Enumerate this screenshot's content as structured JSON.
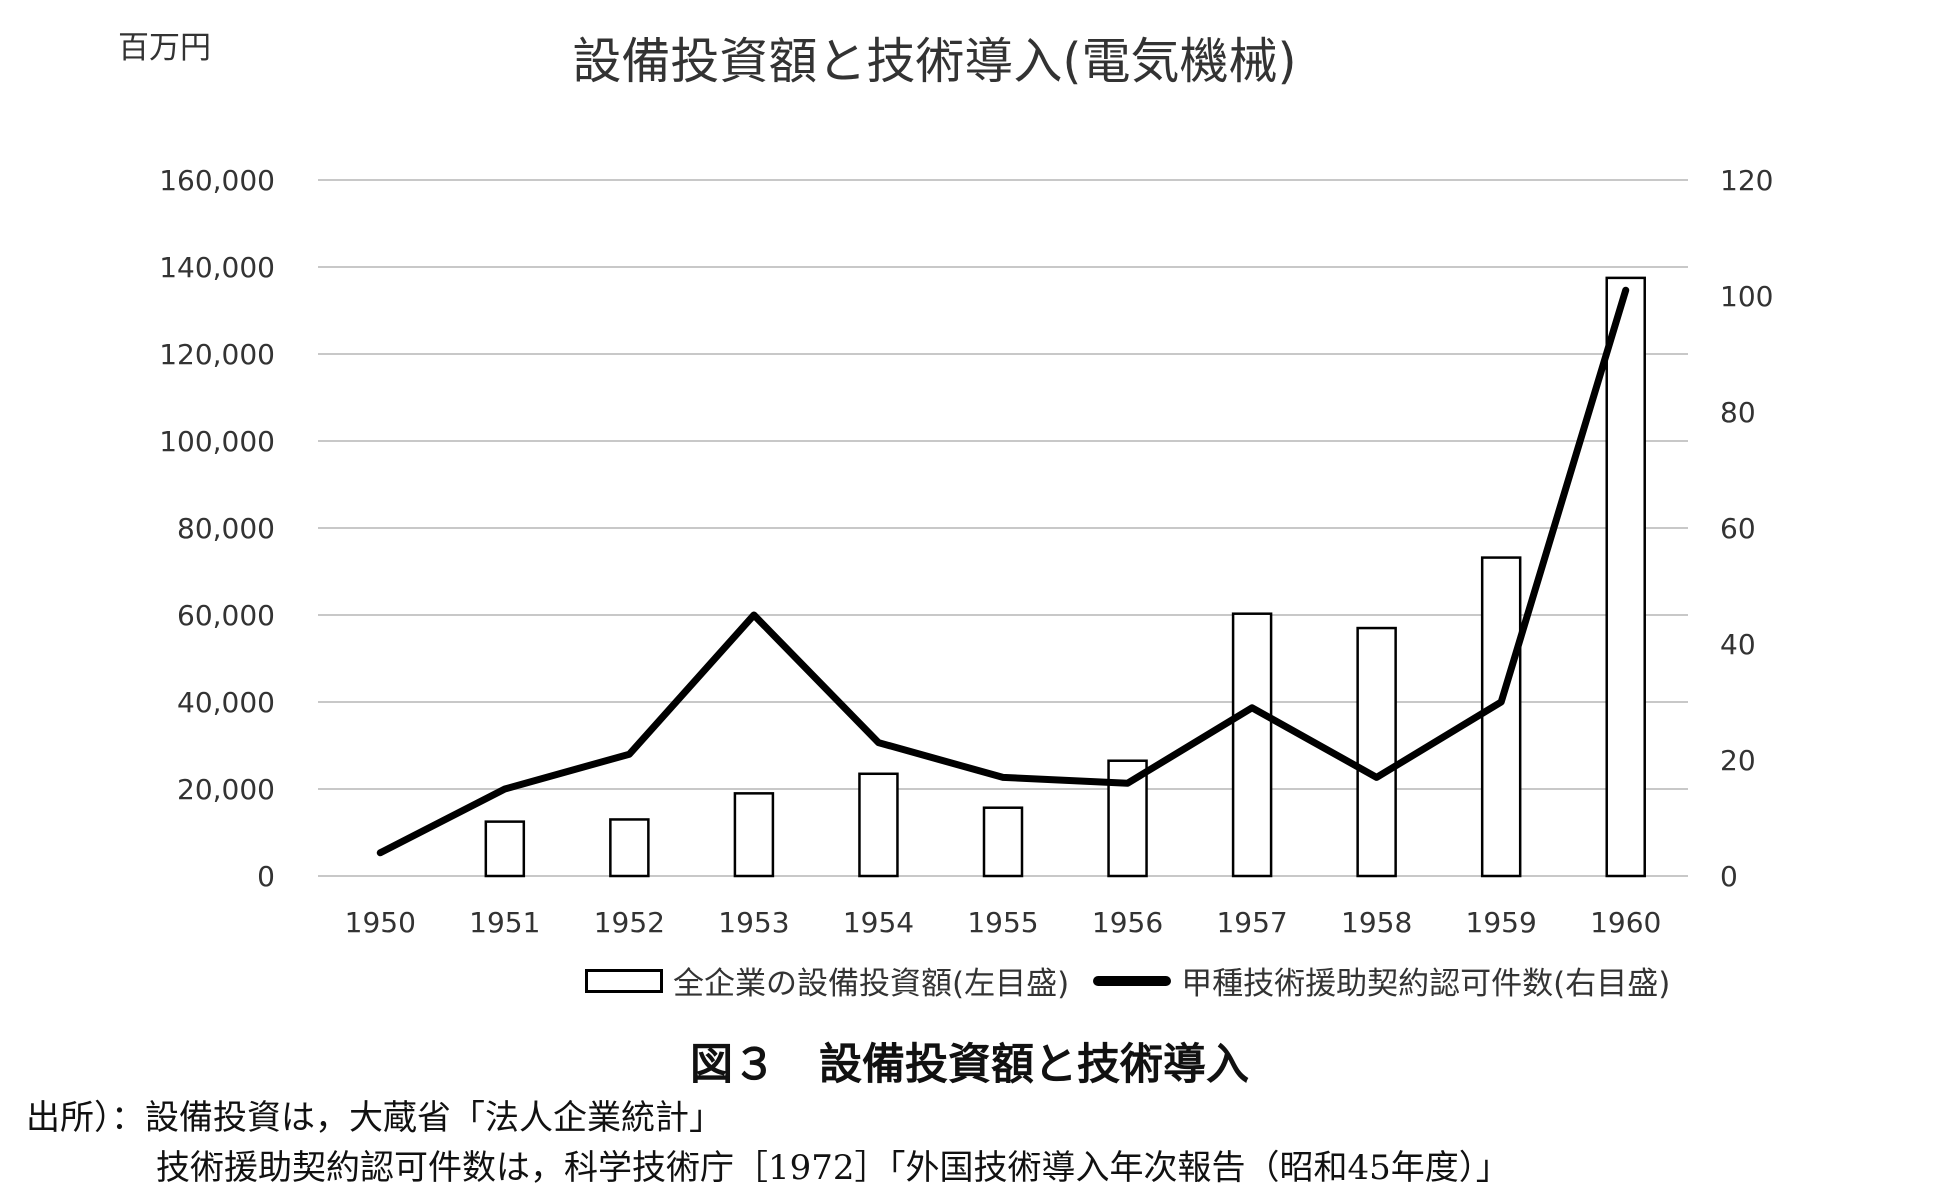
{
  "unit_label": "百万円",
  "title": "設備投資額と技術導入(電気機械)",
  "caption": "図３　設備投資額と技術導入",
  "source_line1": "出所）：設備投資は，大蔵省「法人企業統計」",
  "source_line2": "技術援助契約認可件数は，科学技術庁［1972］「外国技術導入年次報告（昭和45年度）」",
  "colors": {
    "bar_fill": "#ffffff",
    "bar_stroke": "#000000",
    "line": "#000000",
    "grid": "#c8c8c8"
  },
  "chart_data": {
    "type": "bar+line",
    "categories": [
      "1950",
      "1951",
      "1952",
      "1953",
      "1954",
      "1955",
      "1956",
      "1957",
      "1958",
      "1959",
      "1960"
    ],
    "series": [
      {
        "name": "全企業の設備投資額(左目盛)",
        "type": "bar",
        "axis": "left",
        "values": [
          0,
          12500,
          13000,
          19000,
          23500,
          15700,
          26500,
          60300,
          57000,
          73200,
          137500
        ]
      },
      {
        "name": "甲種技術援助契約認可件数(右目盛)",
        "type": "line",
        "axis": "right",
        "values": [
          4,
          15,
          21,
          45,
          23,
          17,
          16,
          29,
          17,
          30,
          101
        ]
      }
    ],
    "y_left": {
      "min": 0,
      "max": 160000,
      "step": 20000,
      "ticks": [
        "0",
        "20,000",
        "40,000",
        "60,000",
        "80,000",
        "100,000",
        "120,000",
        "140,000",
        "160,000"
      ]
    },
    "y_right": {
      "min": 0,
      "max": 120,
      "step": 20,
      "ticks": [
        "0",
        "20",
        "40",
        "60",
        "80",
        "100",
        "120"
      ]
    },
    "grid": true,
    "legend_position": "bottom-right"
  }
}
